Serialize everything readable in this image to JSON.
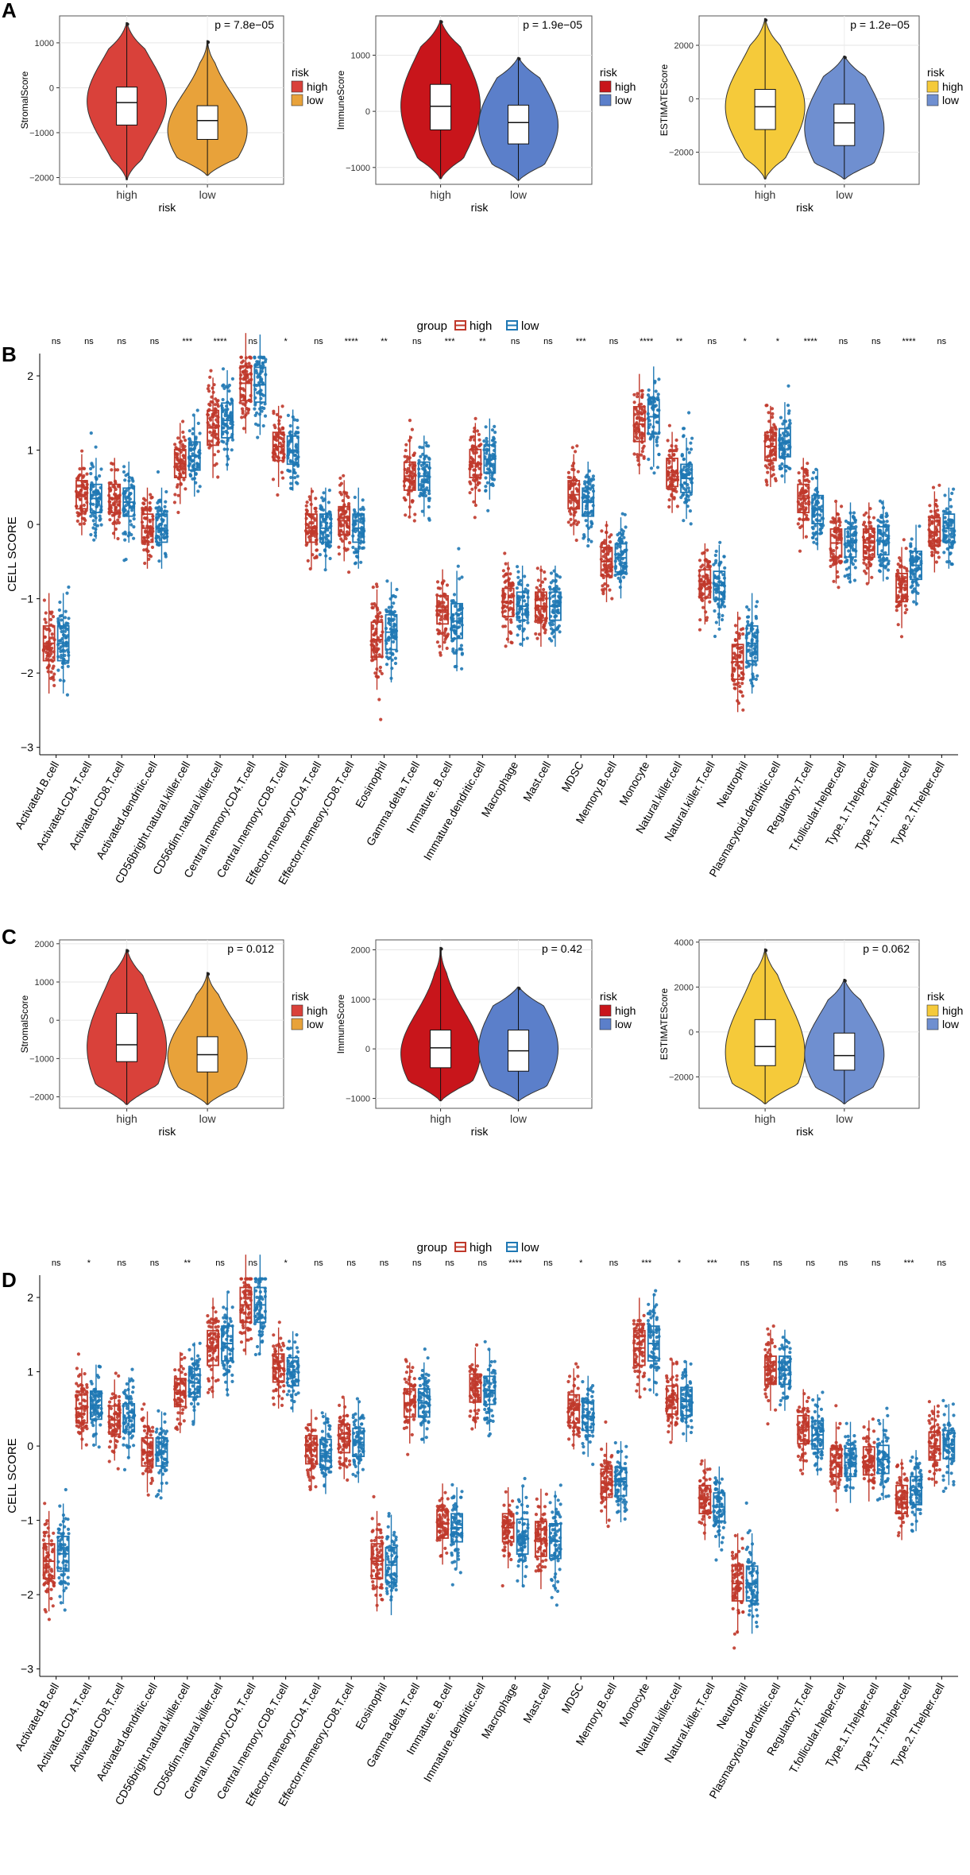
{
  "figure": {
    "panels": [
      "A",
      "B",
      "C",
      "D"
    ]
  },
  "colors": {
    "red": "#c0392b",
    "violin_red": "#d73027",
    "violin_darkred": "#c8151b",
    "violin_yellow": "#f5ca3a",
    "orange": "#e8a23a",
    "blue": "#5b7fca",
    "blue_box": "#2176b8",
    "grid": "#ebebeb",
    "dot_red": "#c0392b",
    "dot_blue": "#1f78b4"
  },
  "chart_data": [
    {
      "panel": "A",
      "type": "violin",
      "subplots": [
        {
          "ylabel": "StromalScore",
          "xlabel": "risk",
          "categories": [
            "high",
            "low"
          ],
          "pvalue": "p = 7.8e−05",
          "ylim": [
            -2150,
            1600
          ],
          "yticks": [
            -2000,
            -1000,
            0,
            1000
          ],
          "colors": [
            "#d9413a",
            "#e8a23a"
          ],
          "legend_title": "risk",
          "legend": [
            "high",
            "low"
          ],
          "violins": [
            {
              "min": -2050,
              "max": 1450,
              "q1": -830,
              "median": -330,
              "q3": 15,
              "peak": -300
            },
            {
              "min": -1950,
              "max": 1050,
              "q1": -1150,
              "median": -730,
              "q3": -400,
              "peak": -950
            }
          ]
        },
        {
          "ylabel": "ImmuneScore",
          "xlabel": "risk",
          "categories": [
            "high",
            "low"
          ],
          "pvalue": "p = 1.9e−05",
          "ylim": [
            -1300,
            1700
          ],
          "yticks": [
            -1000,
            0,
            1000
          ],
          "colors": [
            "#c8151b",
            "#5b7fca"
          ],
          "legend_title": "risk",
          "legend": [
            "high",
            "low"
          ],
          "violins": [
            {
              "min": -1200,
              "max": 1620,
              "q1": -330,
              "median": 90,
              "q3": 480,
              "peak": 100
            },
            {
              "min": -1230,
              "max": 960,
              "q1": -580,
              "median": -200,
              "q3": 110,
              "peak": -250
            }
          ]
        },
        {
          "ylabel": "ESTIMATEScore",
          "xlabel": "risk",
          "categories": [
            "high",
            "low"
          ],
          "pvalue": "p = 1.2e−05",
          "ylim": [
            -3200,
            3100
          ],
          "yticks": [
            -2000,
            0,
            2000
          ],
          "colors": [
            "#f5ca3a",
            "#6f8fd0"
          ],
          "legend_title": "risk",
          "legend": [
            "high",
            "low"
          ],
          "violins": [
            {
              "min": -3000,
              "max": 3000,
              "q1": -1150,
              "median": -300,
              "q3": 350,
              "peak": -300
            },
            {
              "min": -3000,
              "max": 1600,
              "q1": -1750,
              "median": -900,
              "q3": -200,
              "peak": -1100
            }
          ]
        }
      ]
    },
    {
      "panel": "B",
      "type": "box_jitter",
      "ylabel": "CELL SCORE",
      "ylim": [
        -3.1,
        2.3
      ],
      "yticks": [
        -3,
        -2,
        -1,
        0,
        1,
        2
      ],
      "legend_title": "group",
      "series": [
        "high",
        "low"
      ],
      "series_colors": [
        "#c0392b",
        "#1f78b4"
      ],
      "categories": [
        "Activated.B.cell",
        "Activated.CD4.T.cell",
        "Activated.CD8.T.cell",
        "Activated.dendritic.cell",
        "CD56bright.natural.killer.cell",
        "CD56dim.natural.killer.cell",
        "Central.memory.CD4.T.cell",
        "Central.memory.CD8.T.cell",
        "Effector.memeory.CD4.T.cell",
        "Effector.memeory.CD8.T.cell",
        "Eosinophil",
        "Gamma.delta.T.cell",
        "Immature..B.cell",
        "Immature.dendritic.cell",
        "Macrophage",
        "Mast.cell",
        "MDSC",
        "Memory.B.cell",
        "Monocyte",
        "Natural.killer.cell",
        "Natural.killer.T.cell",
        "Neutrophil",
        "Plasmacytoid.dendritic.cell",
        "Regulatory.T.cell",
        "T.follicular.helper.cell",
        "Type.1.T.helper.cell",
        "Type.17.T.helper.cell",
        "Type.2.T.helper.cell"
      ],
      "significance": [
        "ns",
        "ns",
        "ns",
        "ns",
        "***",
        "****",
        "ns",
        "*",
        "ns",
        "****",
        "**",
        "ns",
        "***",
        "**",
        "ns",
        "ns",
        "***",
        "ns",
        "****",
        "**",
        "ns",
        "*",
        "*",
        "****",
        "ns",
        "ns",
        "****",
        "ns"
      ],
      "high_median": [
        -1.6,
        0.4,
        0.35,
        -0.05,
        0.82,
        1.3,
        1.9,
        1.05,
        -0.05,
        0.05,
        -1.55,
        0.65,
        -1.15,
        0.82,
        -1.05,
        -1.1,
        0.4,
        -0.5,
        1.35,
        0.7,
        -0.8,
        -1.85,
        1.05,
        0.35,
        -0.25,
        -0.25,
        -0.85,
        -0.1
      ],
      "low_median": [
        -1.6,
        0.35,
        0.3,
        -0.05,
        0.92,
        1.4,
        1.88,
        1.0,
        -0.05,
        -0.05,
        -1.45,
        0.65,
        -1.3,
        0.88,
        -1.1,
        -1.1,
        0.3,
        -0.45,
        1.45,
        0.62,
        -0.82,
        -1.6,
        1.1,
        0.2,
        -0.25,
        -0.22,
        -0.55,
        -0.05
      ]
    },
    {
      "panel": "C",
      "type": "violin",
      "subplots": [
        {
          "ylabel": "StromalScore",
          "xlabel": "risk",
          "categories": [
            "high",
            "low"
          ],
          "pvalue": "p = 0.012",
          "ylim": [
            -2300,
            2100
          ],
          "yticks": [
            -2000,
            -1000,
            0,
            1000,
            2000
          ],
          "colors": [
            "#d9413a",
            "#e8a23a"
          ],
          "legend_title": "risk",
          "legend": [
            "high",
            "low"
          ],
          "violins": [
            {
              "min": -2200,
              "max": 1850,
              "q1": -1080,
              "median": -640,
              "q3": 180,
              "peak": -700
            },
            {
              "min": -2200,
              "max": 1250,
              "q1": -1350,
              "median": -900,
              "q3": -430,
              "peak": -950
            }
          ]
        },
        {
          "ylabel": "ImmuneScore",
          "xlabel": "risk",
          "categories": [
            "high",
            "low"
          ],
          "pvalue": "p = 0.42",
          "ylim": [
            -1200,
            2200
          ],
          "yticks": [
            -1000,
            0,
            1000,
            2000
          ],
          "colors": [
            "#c8151b",
            "#5b7fca"
          ],
          "legend_title": "risk",
          "legend": [
            "high",
            "low"
          ],
          "violins": [
            {
              "min": -1050,
              "max": 2050,
              "q1": -380,
              "median": 20,
              "q3": 380,
              "peak": -100
            },
            {
              "min": -1050,
              "max": 1250,
              "q1": -450,
              "median": -40,
              "q3": 380,
              "peak": 0
            }
          ]
        },
        {
          "ylabel": "ESTIMATEScore",
          "xlabel": "risk",
          "categories": [
            "high",
            "low"
          ],
          "pvalue": "p = 0.062",
          "ylim": [
            -3400,
            4100
          ],
          "yticks": [
            -2000,
            0,
            2000,
            4000
          ],
          "colors": [
            "#f5ca3a",
            "#6f8fd0"
          ],
          "legend_title": "risk",
          "legend": [
            "high",
            "low"
          ],
          "violins": [
            {
              "min": -3200,
              "max": 3700,
              "q1": -1500,
              "median": -650,
              "q3": 550,
              "peak": -900
            },
            {
              "min": -3200,
              "max": 2350,
              "q1": -1700,
              "median": -1050,
              "q3": -50,
              "peak": -1000
            }
          ]
        }
      ]
    },
    {
      "panel": "D",
      "type": "box_jitter",
      "ylabel": "CELL SCORE",
      "ylim": [
        -3.1,
        2.3
      ],
      "yticks": [
        -3,
        -2,
        -1,
        0,
        1,
        2
      ],
      "legend_title": "group",
      "series": [
        "high",
        "low"
      ],
      "series_colors": [
        "#c0392b",
        "#1f78b4"
      ],
      "categories": [
        "Activated.B.cell",
        "Activated.CD4.T.cell",
        "Activated.CD8.T.cell",
        "Activated.dendritic.cell",
        "CD56bright.natural.killer.cell",
        "CD56dim.natural.killer.cell",
        "Central.memory.CD4.T.cell",
        "Central.memory.CD8.T.cell",
        "Effector.memeory.CD4.T.cell",
        "Effector.memeory.CD8.T.cell",
        "Eosinophil",
        "Gamma.delta.T.cell",
        "Immature..B.cell",
        "Immature.dendritic.cell",
        "Macrophage",
        "Mast.cell",
        "MDSC",
        "Memory.B.cell",
        "Monocyte",
        "Natural.killer.cell",
        "Natural.killer.T.cell",
        "Neutrophil",
        "Plasmacytoid.dendritic.cell",
        "Regulatory.T.cell",
        "T.follicular.helper.cell",
        "Type.1.T.helper.cell",
        "Type.17.T.helper.cell",
        "Type.2.T.helper.cell"
      ],
      "significance": [
        "ns",
        "*",
        "ns",
        "ns",
        "**",
        "ns",
        "ns",
        "*",
        "ns",
        "ns",
        "ns",
        "ns",
        "ns",
        "ns",
        "****",
        "ns",
        "*",
        "ns",
        "***",
        "*",
        "***",
        "ns",
        "ns",
        "ns",
        "ns",
        "ns",
        "***",
        "ns"
      ],
      "high_median": [
        -1.55,
        0.5,
        0.35,
        -0.08,
        0.72,
        1.32,
        1.9,
        1.05,
        -0.05,
        0.1,
        -1.55,
        0.58,
        -1.05,
        0.78,
        -1.1,
        -1.25,
        0.5,
        -0.5,
        1.32,
        0.62,
        -0.72,
        -1.85,
        1.02,
        0.22,
        -0.22,
        -0.2,
        -0.72,
        0.0
      ],
      "low_median": [
        -1.45,
        0.55,
        0.38,
        -0.08,
        0.85,
        1.38,
        1.9,
        1.0,
        -0.1,
        0.05,
        -1.6,
        0.58,
        -1.1,
        0.75,
        -1.22,
        -1.28,
        0.4,
        -0.48,
        1.38,
        0.6,
        -0.82,
        -1.85,
        1.02,
        0.15,
        -0.22,
        -0.18,
        -0.6,
        0.02
      ]
    }
  ]
}
